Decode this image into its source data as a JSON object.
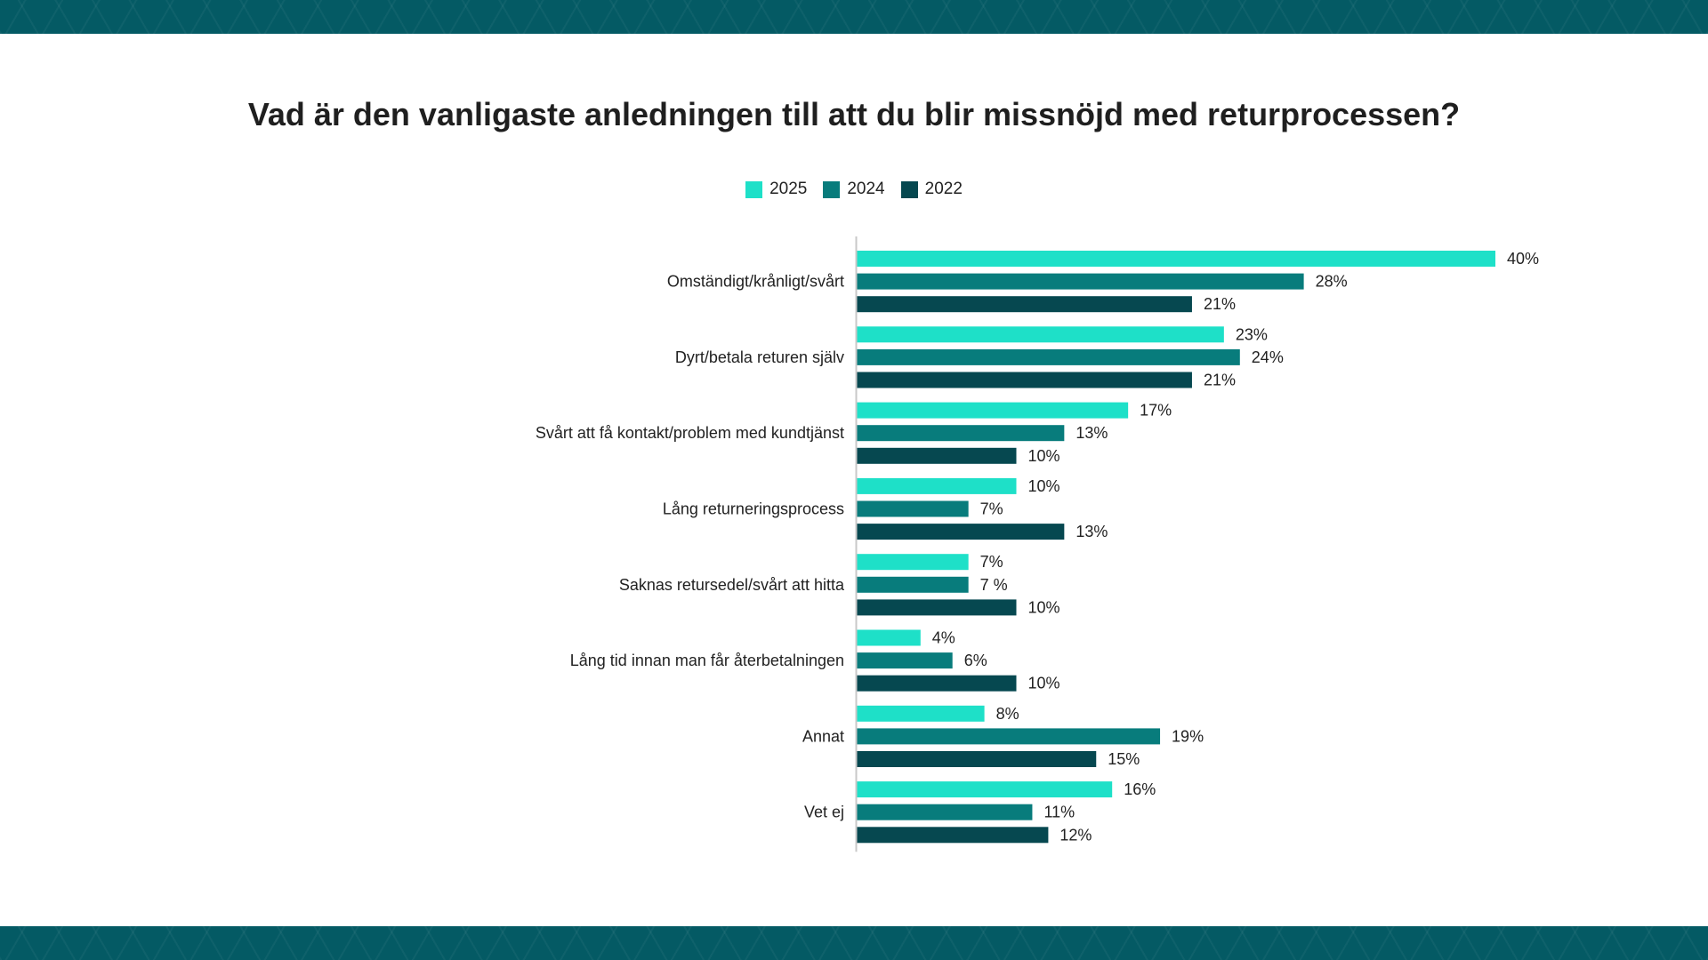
{
  "colors": {
    "band": "#045a64",
    "s2025": "#1ee0c8",
    "s2024": "#087c7c",
    "s2022": "#064850",
    "axis": "#c8c8c8"
  },
  "chart_data": {
    "type": "bar",
    "orientation": "horizontal",
    "title": "Vad är den vanligaste anledningen till att du blir missnöjd med returprocessen?",
    "legend_position": "top-center",
    "xlim": [
      0,
      40
    ],
    "grid": false,
    "categories": [
      "Omständigt/krånligt/svårt",
      "Dyrt/betala returen själv",
      "Svårt att få kontakt/problem med kundtjänst",
      "Lång returneringsprocess",
      "Saknas retursedel/svårt att hitta",
      "Lång tid innan man får återbetalningen",
      "Annat",
      "Vet ej"
    ],
    "series": [
      {
        "name": "2025",
        "color": "#1ee0c8",
        "values": [
          40,
          23,
          17,
          10,
          7,
          4,
          8,
          16
        ],
        "labels": [
          "40%",
          "23%",
          "17%",
          "10%",
          "7%",
          "4%",
          "8%",
          "16%"
        ]
      },
      {
        "name": "2024",
        "color": "#087c7c",
        "values": [
          28,
          24,
          13,
          7,
          7,
          6,
          19,
          11
        ],
        "labels": [
          "28%",
          "24%",
          "13%",
          "7%",
          "7 %",
          "6%",
          "19%",
          "11%"
        ]
      },
      {
        "name": "2022",
        "color": "#064850",
        "values": [
          21,
          21,
          10,
          13,
          10,
          10,
          15,
          12
        ],
        "labels": [
          "21%",
          "21%",
          "10%",
          "13%",
          "10%",
          "10%",
          "15%",
          "12%"
        ]
      }
    ]
  }
}
